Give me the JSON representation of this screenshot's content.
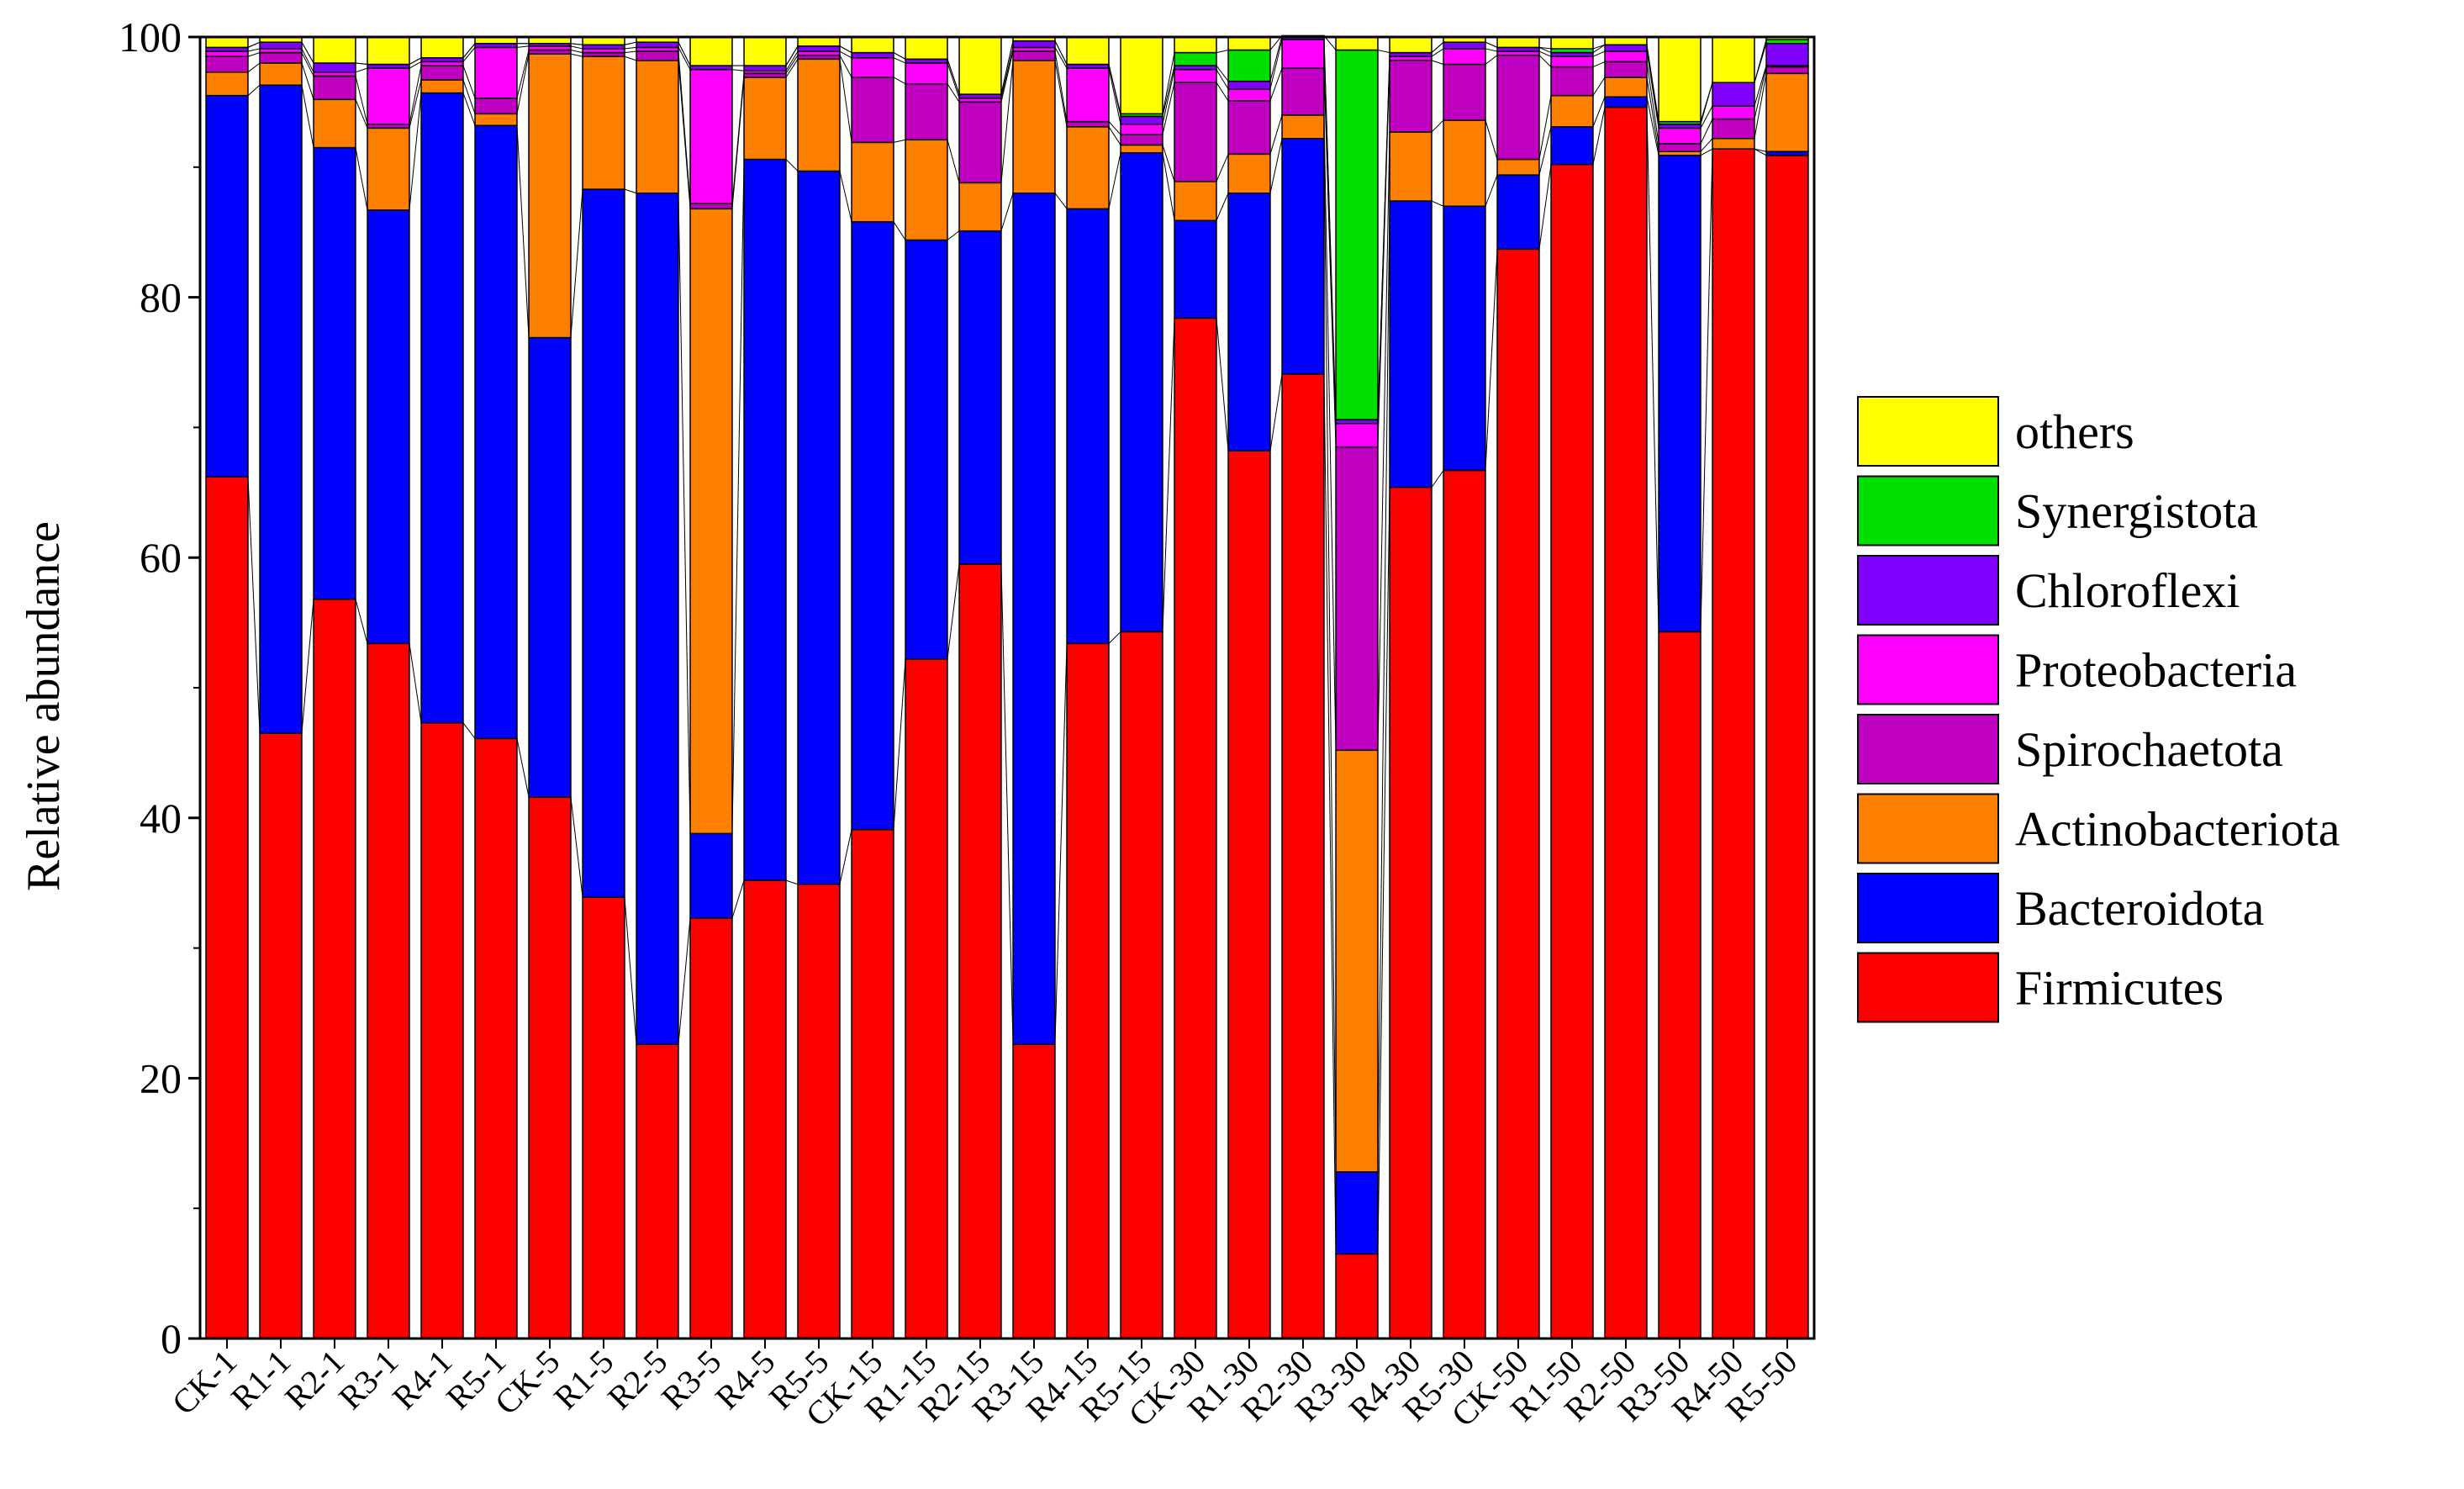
{
  "chart_data": {
    "type": "bar",
    "stacked": true,
    "ylabel": "Relative abundance",
    "xlabel": "",
    "ylim": [
      0,
      100
    ],
    "yticks": [
      0,
      20,
      40,
      60,
      80,
      100
    ],
    "grid": false,
    "legend_position": "right",
    "connector_lines": true,
    "categories": [
      "CK-1",
      "R1-1",
      "R2-1",
      "R3-1",
      "R4-1",
      "R5-1",
      "CK-5",
      "R1-5",
      "R2-5",
      "R3-5",
      "R4-5",
      "R5-5",
      "CK-15",
      "R1-15",
      "R2-15",
      "R3-15",
      "R4-15",
      "R5-15",
      "CK-30",
      "R1-30",
      "R2-30",
      "R3-30",
      "R4-30",
      "R5-30",
      "CK-50",
      "R1-50",
      "R2-50",
      "R3-50",
      "R4-50",
      "R5-50"
    ],
    "series": [
      {
        "name": "Firmicutes",
        "color": "#ff0000",
        "values": [
          66.2,
          46.5,
          56.8,
          53.4,
          47.3,
          46.1,
          41.6,
          33.9,
          22.6,
          32.3,
          35.2,
          34.9,
          39.1,
          52.2,
          59.5,
          22.6,
          53.4,
          54.3,
          78.4,
          68.2,
          74.1,
          6.5,
          65.4,
          66.7,
          83.7,
          90.2,
          94.6,
          54.3,
          91.4,
          90.9
        ]
      },
      {
        "name": "Bacteroidota",
        "color": "#0000ff",
        "values": [
          29.3,
          49.8,
          34.7,
          33.3,
          48.4,
          47.1,
          35.3,
          54.4,
          65.4,
          6.5,
          55.4,
          54.8,
          46.7,
          32.2,
          25.6,
          65.4,
          33.4,
          36.8,
          7.5,
          19.8,
          18.1,
          6.3,
          22.0,
          20.3,
          5.7,
          2.9,
          0.8,
          36.6,
          0.0,
          0.3
        ]
      },
      {
        "name": "Actinobacteriota",
        "color": "#ff8000",
        "values": [
          1.8,
          1.7,
          3.7,
          6.3,
          1.0,
          0.9,
          21.8,
          10.2,
          10.2,
          48.0,
          6.3,
          8.6,
          6.1,
          7.7,
          3.7,
          10.2,
          6.3,
          0.6,
          3.0,
          3.0,
          1.8,
          32.4,
          5.3,
          6.6,
          1.2,
          2.4,
          1.5,
          0.3,
          0.8,
          6.0
        ]
      },
      {
        "name": "Spirochaetota",
        "color": "#c000c0",
        "values": [
          1.2,
          0.8,
          1.8,
          0.3,
          1.1,
          1.2,
          0.3,
          0.3,
          0.7,
          0.4,
          0.3,
          0.3,
          5.0,
          4.3,
          6.2,
          0.7,
          0.4,
          0.8,
          7.6,
          4.1,
          3.6,
          23.3,
          5.5,
          4.3,
          8.0,
          2.2,
          1.2,
          0.6,
          1.5,
          0.5
        ]
      },
      {
        "name": "Proteobacteria",
        "color": "#ff00ff",
        "values": [
          0.4,
          0.3,
          0.3,
          4.3,
          0.3,
          3.9,
          0.3,
          0.3,
          0.3,
          10.3,
          0.2,
          0.3,
          1.5,
          1.6,
          0.3,
          0.3,
          4.1,
          0.8,
          1.0,
          0.9,
          2.2,
          1.8,
          0.3,
          1.2,
          0.3,
          0.8,
          0.8,
          1.2,
          1.0,
          0.1
        ]
      },
      {
        "name": "Chloroflexi",
        "color": "#8000ff",
        "values": [
          0.3,
          0.5,
          0.7,
          0.3,
          0.3,
          0.3,
          0.2,
          0.3,
          0.4,
          0.3,
          0.4,
          0.4,
          0.4,
          0.3,
          0.3,
          0.5,
          0.3,
          0.6,
          0.3,
          0.6,
          0.3,
          0.3,
          0.3,
          0.5,
          0.3,
          0.3,
          0.5,
          0.3,
          1.8,
          1.7
        ]
      },
      {
        "name": "Synergistota",
        "color": "#00e000",
        "values": [
          0.0,
          0.0,
          0.0,
          0.0,
          0.0,
          0.0,
          0.0,
          0.0,
          0.0,
          0.0,
          0.0,
          0.0,
          0.0,
          0.0,
          0.0,
          0.0,
          0.0,
          0.2,
          1.0,
          2.4,
          0.0,
          28.4,
          0.0,
          0.0,
          0.0,
          0.3,
          0.0,
          0.2,
          0.0,
          0.3
        ]
      },
      {
        "name": "others",
        "color": "#ffff00",
        "values": [
          0.8,
          0.4,
          2.0,
          2.1,
          1.6,
          0.5,
          0.5,
          0.6,
          0.4,
          2.2,
          2.2,
          0.7,
          1.2,
          1.7,
          4.4,
          0.3,
          2.1,
          5.9,
          1.2,
          1.0,
          0.0,
          1.0,
          1.2,
          0.4,
          0.8,
          0.9,
          0.6,
          6.5,
          3.5,
          0.2
        ]
      }
    ],
    "legend_order": [
      "others",
      "Synergistota",
      "Chloroflexi",
      "Proteobacteria",
      "Spirochaetota",
      "Actinobacteriota",
      "Bacteroidota",
      "Firmicutes"
    ]
  }
}
